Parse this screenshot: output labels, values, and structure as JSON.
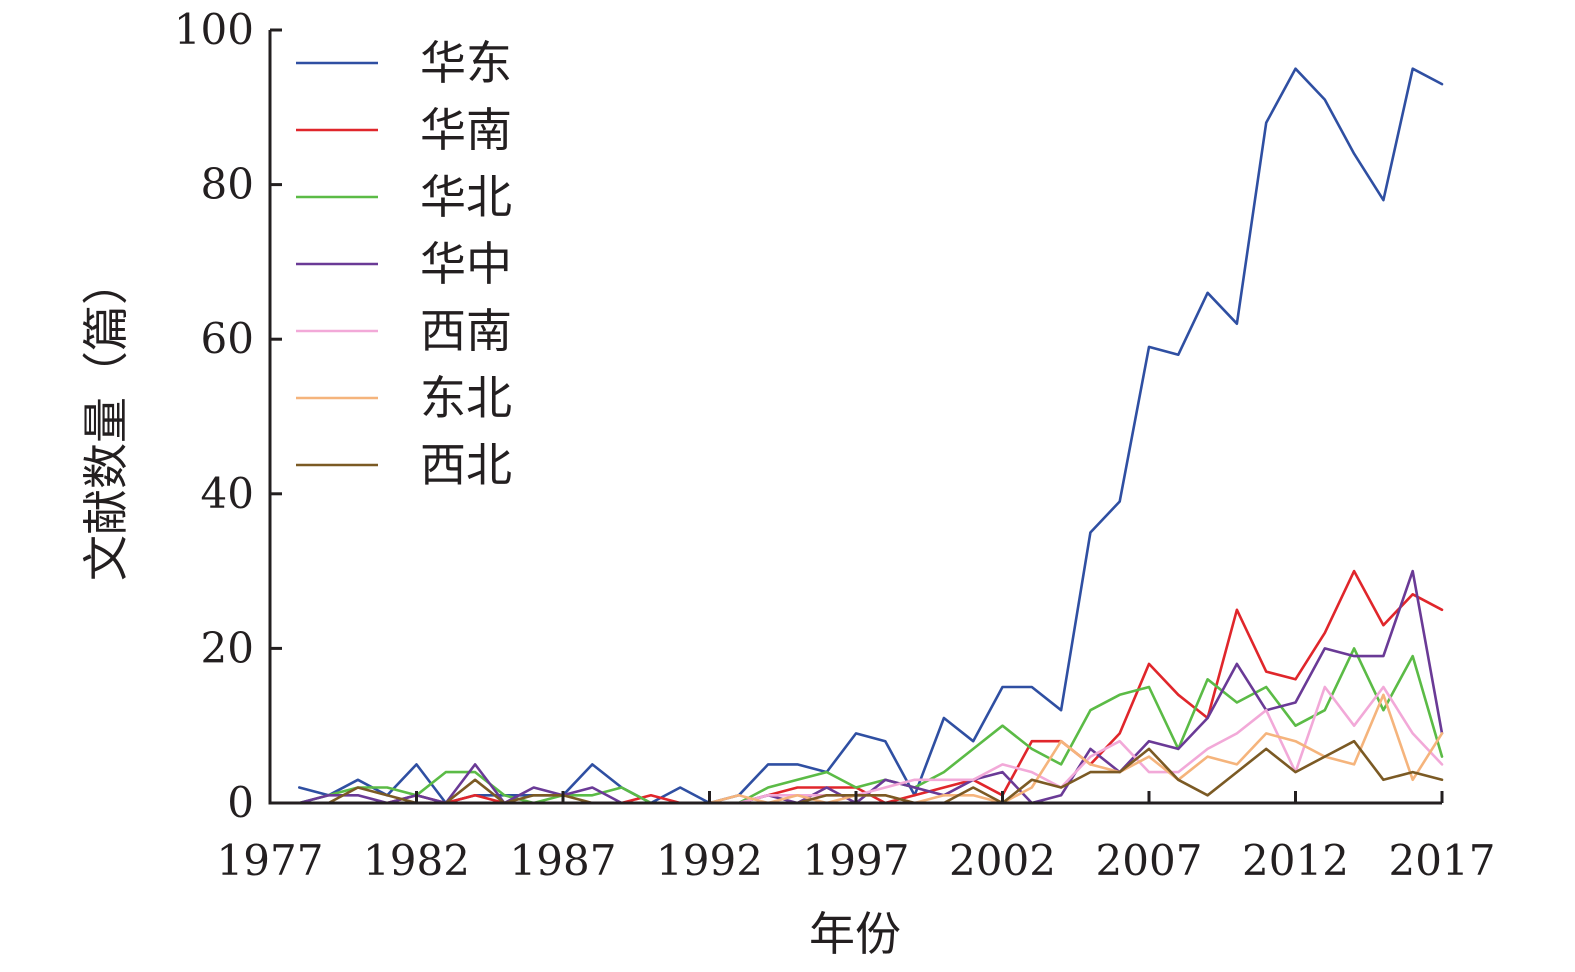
{
  "chart_data": {
    "type": "line",
    "xlabel": "年份",
    "ylabel": "文献数量（篇）",
    "xlim": [
      1977,
      2017
    ],
    "ylim": [
      0,
      100
    ],
    "x_ticks": [
      1977,
      1982,
      1987,
      1992,
      1997,
      2002,
      2007,
      2012,
      2017
    ],
    "y_ticks": [
      0,
      20,
      40,
      60,
      80,
      100
    ],
    "legend_position": "top-left",
    "grid": false,
    "x": [
      1978,
      1979,
      1980,
      1981,
      1982,
      1983,
      1984,
      1985,
      1986,
      1987,
      1988,
      1989,
      1990,
      1991,
      1992,
      1993,
      1994,
      1995,
      1996,
      1997,
      1998,
      1999,
      2000,
      2001,
      2002,
      2003,
      2004,
      2005,
      2006,
      2007,
      2008,
      2009,
      2010,
      2011,
      2012,
      2013,
      2014,
      2015,
      2016,
      2017
    ],
    "series": [
      {
        "name": "华东",
        "color": "#2f4fa2",
        "values": [
          2,
          1,
          3,
          1,
          5,
          0,
          1,
          1,
          1,
          1,
          5,
          2,
          0,
          2,
          0,
          1,
          5,
          5,
          4,
          9,
          8,
          1,
          11,
          8,
          15,
          15,
          12,
          35,
          39,
          59,
          58,
          66,
          62,
          88,
          95,
          91,
          84,
          78,
          95,
          93
        ]
      },
      {
        "name": "华南",
        "color": "#e0262b",
        "values": [
          0,
          0,
          0,
          0,
          1,
          0,
          1,
          0,
          0,
          0,
          0,
          0,
          1,
          0,
          0,
          0,
          1,
          2,
          2,
          2,
          0,
          1,
          2,
          3,
          1,
          8,
          8,
          5,
          9,
          18,
          14,
          11,
          25,
          17,
          16,
          22,
          30,
          23,
          27,
          25
        ]
      },
      {
        "name": "华北",
        "color": "#5bbb46",
        "values": [
          0,
          1,
          2,
          2,
          1,
          4,
          4,
          1,
          0,
          1,
          1,
          2,
          0,
          0,
          0,
          0,
          2,
          3,
          4,
          2,
          3,
          2,
          4,
          7,
          10,
          7,
          5,
          12,
          14,
          15,
          7,
          16,
          13,
          15,
          10,
          12,
          20,
          12,
          19,
          6
        ]
      },
      {
        "name": "华中",
        "color": "#6a3a96",
        "values": [
          0,
          1,
          1,
          0,
          1,
          0,
          5,
          0,
          2,
          1,
          2,
          0,
          0,
          0,
          0,
          0,
          1,
          0,
          2,
          0,
          3,
          2,
          1,
          3,
          4,
          0,
          1,
          7,
          4,
          8,
          7,
          11,
          18,
          12,
          13,
          20,
          19,
          19,
          30,
          9
        ]
      },
      {
        "name": "西南",
        "color": "#f2a9d8",
        "values": [
          0,
          0,
          0,
          0,
          0,
          0,
          0,
          0,
          0,
          0,
          0,
          0,
          0,
          0,
          0,
          0,
          1,
          1,
          1,
          1,
          2,
          3,
          3,
          3,
          5,
          4,
          2,
          6,
          8,
          4,
          4,
          7,
          9,
          12,
          4,
          15,
          10,
          15,
          9,
          5
        ]
      },
      {
        "name": "东北",
        "color": "#f5b47c",
        "values": [
          0,
          0,
          0,
          0,
          0,
          0,
          0,
          0,
          0,
          0,
          0,
          0,
          0,
          0,
          0,
          1,
          0,
          1,
          0,
          1,
          1,
          0,
          1,
          1,
          0,
          2,
          8,
          5,
          4,
          6,
          3,
          6,
          5,
          9,
          8,
          6,
          5,
          14,
          3,
          9
        ]
      },
      {
        "name": "西北",
        "color": "#7b5a24",
        "values": [
          0,
          0,
          2,
          1,
          0,
          0,
          3,
          0,
          1,
          1,
          0,
          0,
          0,
          0,
          0,
          0,
          0,
          0,
          1,
          1,
          1,
          0,
          0,
          2,
          0,
          3,
          2,
          4,
          4,
          7,
          3,
          1,
          4,
          7,
          4,
          6,
          8,
          3,
          4,
          3
        ]
      }
    ]
  }
}
